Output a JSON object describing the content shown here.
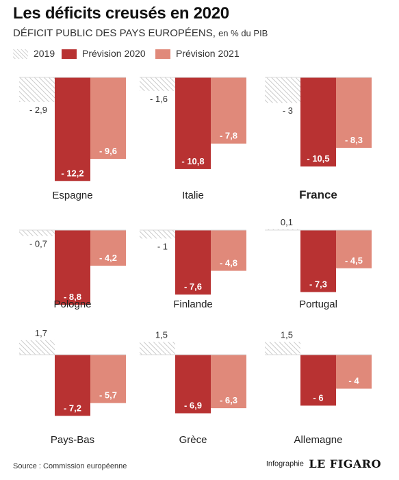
{
  "header": {
    "title": "Les déficits creusés en 2020",
    "subtitle": "DÉFICIT PUBLIC DES PAYS EUROPÉENS,",
    "subtitle_unit": "en % du PIB"
  },
  "legend": {
    "items": [
      {
        "label": "2019",
        "style": "hatched"
      },
      {
        "label": "Prévision 2020",
        "color": "#b83232"
      },
      {
        "label": "Prévision 2021",
        "color": "#e0897a"
      }
    ]
  },
  "colors": {
    "y2019": "#c8c8c8",
    "y2020": "#b83232",
    "y2021": "#e0897a",
    "label_dark": "#333333",
    "label_light": "#ffffff"
  },
  "chart_data": {
    "type": "bar",
    "layout": "small-multiples 3x3",
    "unit": "% du PIB",
    "series_names": [
      "2019",
      "Prévision 2020",
      "Prévision 2021"
    ],
    "panels": [
      {
        "country": "Espagne",
        "highlight": false,
        "values": [
          -2.9,
          -12.2,
          -9.6
        ],
        "labels": [
          "- 2,9",
          "- 12,2",
          "- 9,6"
        ]
      },
      {
        "country": "Italie",
        "highlight": false,
        "values": [
          -1.6,
          -10.8,
          -7.8
        ],
        "labels": [
          "- 1,6",
          "- 10,8",
          "- 7,8"
        ]
      },
      {
        "country": "France",
        "highlight": true,
        "values": [
          -3,
          -10.5,
          -8.3
        ],
        "labels": [
          "- 3",
          "- 10,5",
          "- 8,3"
        ]
      },
      {
        "country": "Pologne",
        "highlight": false,
        "values": [
          -0.7,
          -8.8,
          -4.2
        ],
        "labels": [
          "- 0,7",
          "- 8,8",
          "- 4,2"
        ]
      },
      {
        "country": "Finlande",
        "highlight": false,
        "values": [
          -1,
          -7.6,
          -4.8
        ],
        "labels": [
          "- 1",
          "- 7,6",
          "- 4,8"
        ]
      },
      {
        "country": "Portugal",
        "highlight": false,
        "values": [
          0.1,
          -7.3,
          -4.5
        ],
        "labels": [
          "0,1",
          "- 7,3",
          "- 4,5"
        ]
      },
      {
        "country": "Pays-Bas",
        "highlight": false,
        "values": [
          1.7,
          -7.2,
          -5.7
        ],
        "labels": [
          "1,7",
          "- 7,2",
          "- 5,7"
        ]
      },
      {
        "country": "Grèce",
        "highlight": false,
        "values": [
          1.5,
          -6.9,
          -6.3
        ],
        "labels": [
          "1,5",
          "- 6,9",
          "- 6,3"
        ]
      },
      {
        "country": "Allemagne",
        "highlight": false,
        "values": [
          1.5,
          -6,
          -4
        ],
        "labels": [
          "1,5",
          "- 6",
          "- 4"
        ]
      }
    ]
  },
  "footer": {
    "source": "Source : Commission européenne",
    "credit_prefix": "Infographie",
    "credit_brand": "LE FIGARO"
  }
}
